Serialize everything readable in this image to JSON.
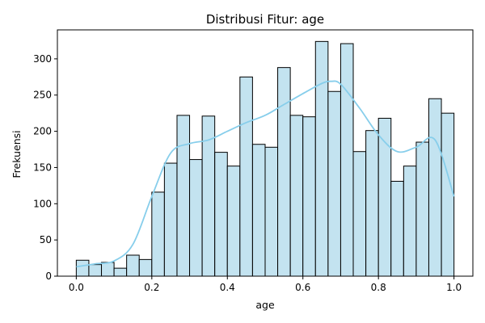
{
  "chart_data": {
    "type": "bar",
    "title": "Distribusi Fitur: age",
    "xlabel": "age",
    "ylabel": "Frekuensi",
    "xlim": [
      -0.05,
      1.05
    ],
    "ylim": [
      0,
      340
    ],
    "x_ticks": [
      0.0,
      0.2,
      0.4,
      0.6,
      0.8,
      1.0
    ],
    "x_tick_labels": [
      "0.0",
      "0.2",
      "0.4",
      "0.6",
      "0.8",
      "1.0"
    ],
    "y_ticks": [
      0,
      50,
      100,
      150,
      200,
      250,
      300
    ],
    "y_tick_labels": [
      "0",
      "50",
      "100",
      "150",
      "200",
      "250",
      "300"
    ],
    "bin_width": 0.0333,
    "bins_start": [
      0.0,
      0.0333,
      0.0667,
      0.1,
      0.1333,
      0.1667,
      0.2,
      0.2333,
      0.2667,
      0.3,
      0.3333,
      0.3667,
      0.4,
      0.4333,
      0.4667,
      0.5,
      0.5333,
      0.5667,
      0.6,
      0.6333,
      0.6667,
      0.7,
      0.7333,
      0.7667,
      0.8,
      0.8333,
      0.8667,
      0.9,
      0.9333,
      0.9667
    ],
    "values": [
      22,
      16,
      19,
      11,
      29,
      23,
      116,
      156,
      222,
      161,
      221,
      171,
      152,
      275,
      182,
      178,
      288,
      222,
      220,
      324,
      255,
      321,
      172,
      201,
      218,
      131,
      152,
      185,
      245,
      225
    ],
    "kde": {
      "x": [
        0.0,
        0.05,
        0.1,
        0.15,
        0.2,
        0.25,
        0.3,
        0.35,
        0.4,
        0.45,
        0.5,
        0.55,
        0.6,
        0.65,
        0.675,
        0.7,
        0.75,
        0.8,
        0.85,
        0.9,
        0.95,
        1.0
      ],
      "y": [
        13,
        17,
        21,
        44,
        110,
        170,
        183,
        188,
        200,
        212,
        222,
        237,
        252,
        266,
        269,
        265,
        232,
        195,
        172,
        178,
        188,
        110
      ]
    },
    "bar_color": "#c3e3f0",
    "bar_edge_color": "#000000",
    "kde_color": "#87ceeb",
    "grid": false,
    "legend": "none"
  }
}
